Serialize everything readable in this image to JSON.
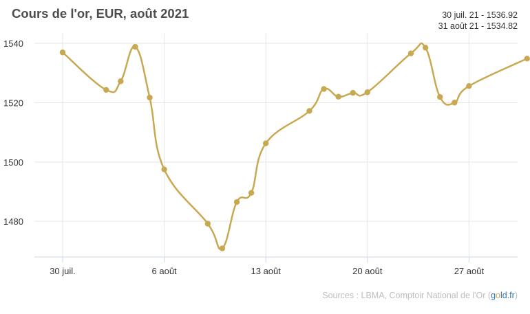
{
  "header": {
    "title": "Cours de l'or, EUR, août 2021",
    "range_start": "30 juil. 21 - 1536.92",
    "range_end": "31 août 21 - 1534.82"
  },
  "source": {
    "prefix": "Sources : LBMA, Comptoir National de l'Or (",
    "brand_g": "g",
    "brand_o": "o",
    "brand_rest": "ld.fr",
    "suffix": ")"
  },
  "colors": {
    "series": "#c8a951",
    "grid": "#e6e6e6",
    "axis": "#ccd6eb",
    "tick_text": "#333333"
  },
  "chart_data": {
    "type": "line",
    "title": "Cours de l'or, EUR, août 2021",
    "xlabel": "",
    "ylabel": "",
    "x_unit": "day_of_month_offset",
    "x_ticks": [
      "30 juil.",
      "6 août",
      "13 août",
      "20 août",
      "27 août"
    ],
    "y_ticks": [
      1480,
      1500,
      1520,
      1540
    ],
    "ylim": [
      1468,
      1543
    ],
    "grid": true,
    "series": [
      {
        "dates": [
          "30 juil.",
          "2 août",
          "3 août",
          "4 août",
          "5 août",
          "6 août",
          "9 août",
          "10 août",
          "11 août",
          "12 août",
          "13 août",
          "16 août",
          "17 août",
          "18 août",
          "19 août",
          "20 août",
          "23 août",
          "24 août",
          "25 août",
          "26 août",
          "27 août",
          "31 août"
        ],
        "values": [
          1536.92,
          1524.3,
          1527.2,
          1538.8,
          1521.7,
          1497.5,
          1479.2,
          1470.9,
          1486.5,
          1489.6,
          1506.3,
          1517.2,
          1524.6,
          1522.0,
          1523.3,
          1523.5,
          1536.6,
          1538.5,
          1521.9,
          1520.0,
          1525.6,
          1534.82
        ]
      }
    ]
  }
}
